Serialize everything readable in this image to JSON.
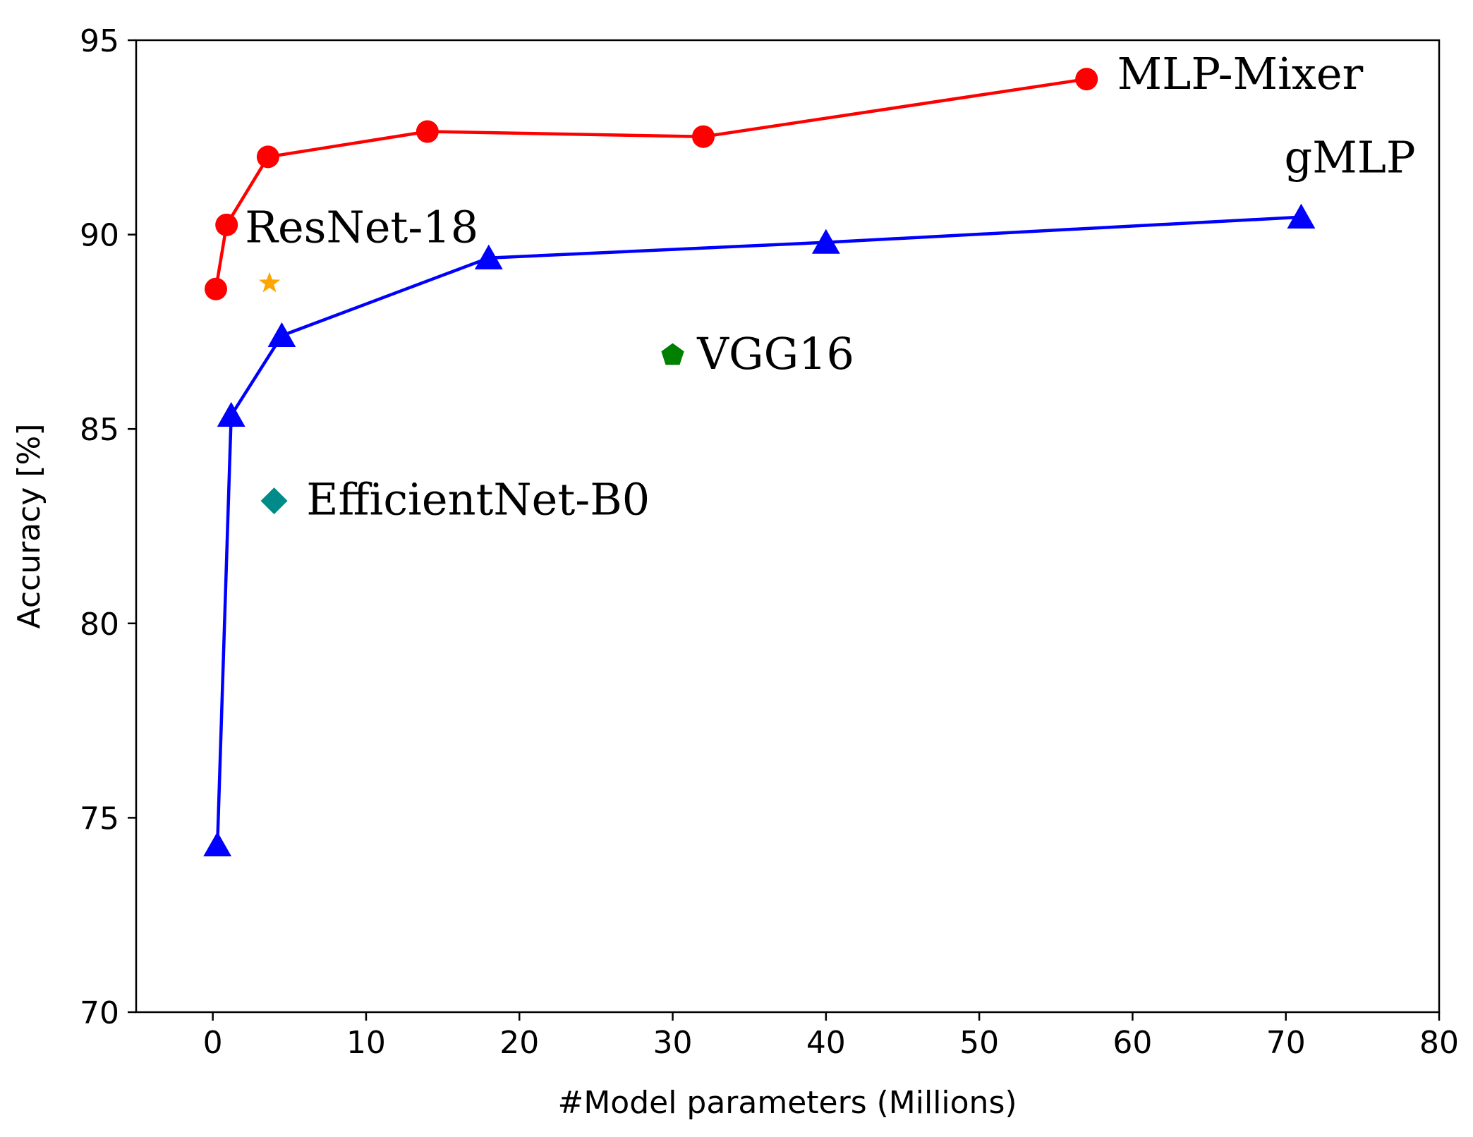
{
  "chart_data": {
    "type": "line",
    "xlabel": "#Model parameters (Millions)",
    "ylabel": "Accuracy [%]",
    "xlim": [
      -5,
      80
    ],
    "ylim": [
      70,
      95
    ],
    "xticks": [
      0,
      10,
      20,
      30,
      40,
      50,
      60,
      70,
      80
    ],
    "yticks": [
      70,
      75,
      80,
      85,
      90,
      95
    ],
    "grid": false,
    "series": [
      {
        "name": "MLP-Mixer",
        "color": "#ff0000",
        "marker": "circle",
        "line": true,
        "x": [
          0.2,
          0.9,
          3.6,
          14,
          32,
          57
        ],
        "y": [
          88.6,
          90.25,
          92.0,
          92.65,
          92.52,
          94.0
        ]
      },
      {
        "name": "gMLP",
        "color": "#0000ff",
        "marker": "triangle",
        "line": true,
        "x": [
          0.3,
          1.2,
          4.5,
          18,
          40,
          71
        ],
        "y": [
          74.3,
          85.35,
          87.4,
          89.4,
          89.8,
          90.45
        ]
      },
      {
        "name": "ResNet-18",
        "color": "#ffa500",
        "marker": "star",
        "line": false,
        "x": [
          3.7
        ],
        "y": [
          88.75
        ]
      },
      {
        "name": "VGG16",
        "color": "#008000",
        "marker": "pentagon",
        "line": false,
        "x": [
          30
        ],
        "y": [
          86.9
        ]
      },
      {
        "name": "EfficientNet-B0",
        "color": "#008b8b",
        "marker": "diamond",
        "line": false,
        "x": [
          4.0
        ],
        "y": [
          83.15
        ]
      }
    ],
    "annotations": [
      {
        "text": "MLP-Mixer",
        "x": 59,
        "y": 93.75
      },
      {
        "text": "gMLP",
        "x": 69.9,
        "y": 91.6
      },
      {
        "text": "ResNet-18",
        "x": 2.1,
        "y": 89.8
      },
      {
        "text": "VGG16",
        "x": 31.6,
        "y": 86.55
      },
      {
        "text": "EfficientNet-B0",
        "x": 6.1,
        "y": 82.8
      }
    ]
  }
}
